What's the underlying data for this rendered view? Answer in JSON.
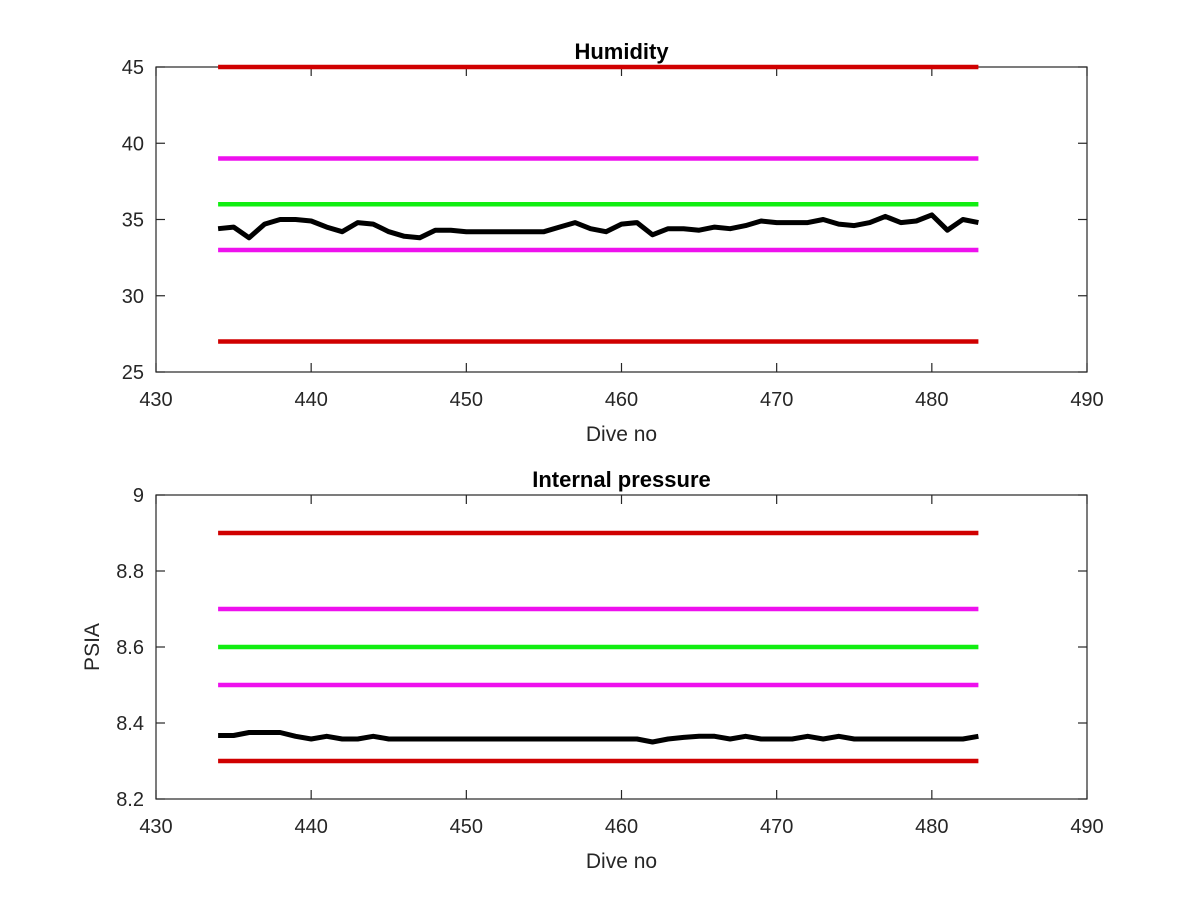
{
  "chart_data": [
    {
      "type": "line",
      "title": "Humidity",
      "xlabel": "Dive no",
      "ylabel": "",
      "xlim": [
        430,
        490
      ],
      "ylim": [
        25,
        45
      ],
      "xticks": [
        430,
        440,
        450,
        460,
        470,
        480,
        490
      ],
      "yticks": [
        25,
        30,
        35,
        40,
        45
      ],
      "grid": false,
      "series": [
        {
          "color": "#d00000",
          "x": [
            434,
            483
          ],
          "y": [
            45,
            45
          ]
        },
        {
          "color": "#ee11ee",
          "x": [
            434,
            483
          ],
          "y": [
            39,
            39
          ]
        },
        {
          "color": "#11ee11",
          "x": [
            434,
            483
          ],
          "y": [
            36,
            36
          ]
        },
        {
          "color": "#ee11ee",
          "x": [
            434,
            483
          ],
          "y": [
            33,
            33
          ]
        },
        {
          "color": "#d00000",
          "x": [
            434,
            483
          ],
          "y": [
            27,
            27
          ]
        },
        {
          "color": "#000000",
          "x": [
            434,
            435,
            436,
            437,
            438,
            439,
            440,
            441,
            442,
            443,
            444,
            445,
            446,
            447,
            448,
            449,
            450,
            451,
            452,
            453,
            454,
            455,
            456,
            457,
            458,
            459,
            460,
            461,
            462,
            463,
            464,
            465,
            466,
            467,
            468,
            469,
            470,
            471,
            472,
            473,
            474,
            475,
            476,
            477,
            478,
            479,
            480,
            481,
            482,
            483
          ],
          "y": [
            34.4,
            34.5,
            33.8,
            34.7,
            35.0,
            35.0,
            34.9,
            34.5,
            34.2,
            34.8,
            34.7,
            34.2,
            33.9,
            33.8,
            34.3,
            34.3,
            34.2,
            34.2,
            34.2,
            34.2,
            34.2,
            34.2,
            34.5,
            34.8,
            34.4,
            34.2,
            34.7,
            34.8,
            34.0,
            34.4,
            34.4,
            34.3,
            34.5,
            34.4,
            34.6,
            34.9,
            34.8,
            34.8,
            34.8,
            35.0,
            34.7,
            34.6,
            34.8,
            35.2,
            34.8,
            34.9,
            35.3,
            34.3,
            35.0,
            34.8
          ]
        }
      ]
    },
    {
      "type": "line",
      "title": "Internal pressure",
      "xlabel": "Dive no",
      "ylabel": "PSIA",
      "xlim": [
        430,
        490
      ],
      "ylim": [
        8.2,
        9
      ],
      "xticks": [
        430,
        440,
        450,
        460,
        470,
        480,
        490
      ],
      "yticks": [
        8.2,
        8.4,
        8.6,
        8.8,
        9
      ],
      "grid": false,
      "series": [
        {
          "color": "#d00000",
          "x": [
            434,
            483
          ],
          "y": [
            8.9,
            8.9
          ]
        },
        {
          "color": "#ee11ee",
          "x": [
            434,
            483
          ],
          "y": [
            8.7,
            8.7
          ]
        },
        {
          "color": "#11ee11",
          "x": [
            434,
            483
          ],
          "y": [
            8.6,
            8.6
          ]
        },
        {
          "color": "#ee11ee",
          "x": [
            434,
            483
          ],
          "y": [
            8.5,
            8.5
          ]
        },
        {
          "color": "#d00000",
          "x": [
            434,
            483
          ],
          "y": [
            8.3,
            8.3
          ]
        },
        {
          "color": "#000000",
          "x": [
            434,
            435,
            436,
            437,
            438,
            439,
            440,
            441,
            442,
            443,
            444,
            445,
            446,
            447,
            448,
            449,
            450,
            451,
            452,
            453,
            454,
            455,
            456,
            457,
            458,
            459,
            460,
            461,
            462,
            463,
            464,
            465,
            466,
            467,
            468,
            469,
            470,
            471,
            472,
            473,
            474,
            475,
            476,
            477,
            478,
            479,
            480,
            481,
            482,
            483
          ],
          "y": [
            8.367,
            8.367,
            8.375,
            8.375,
            8.375,
            8.365,
            8.358,
            8.365,
            8.358,
            8.358,
            8.365,
            8.358,
            8.358,
            8.358,
            8.358,
            8.358,
            8.358,
            8.358,
            8.358,
            8.358,
            8.358,
            8.358,
            8.358,
            8.358,
            8.358,
            8.358,
            8.358,
            8.358,
            8.35,
            8.358,
            8.362,
            8.365,
            8.365,
            8.358,
            8.365,
            8.358,
            8.358,
            8.358,
            8.365,
            8.358,
            8.365,
            8.358,
            8.358,
            8.358,
            8.358,
            8.358,
            8.358,
            8.358,
            8.358,
            8.365
          ]
        }
      ]
    }
  ]
}
